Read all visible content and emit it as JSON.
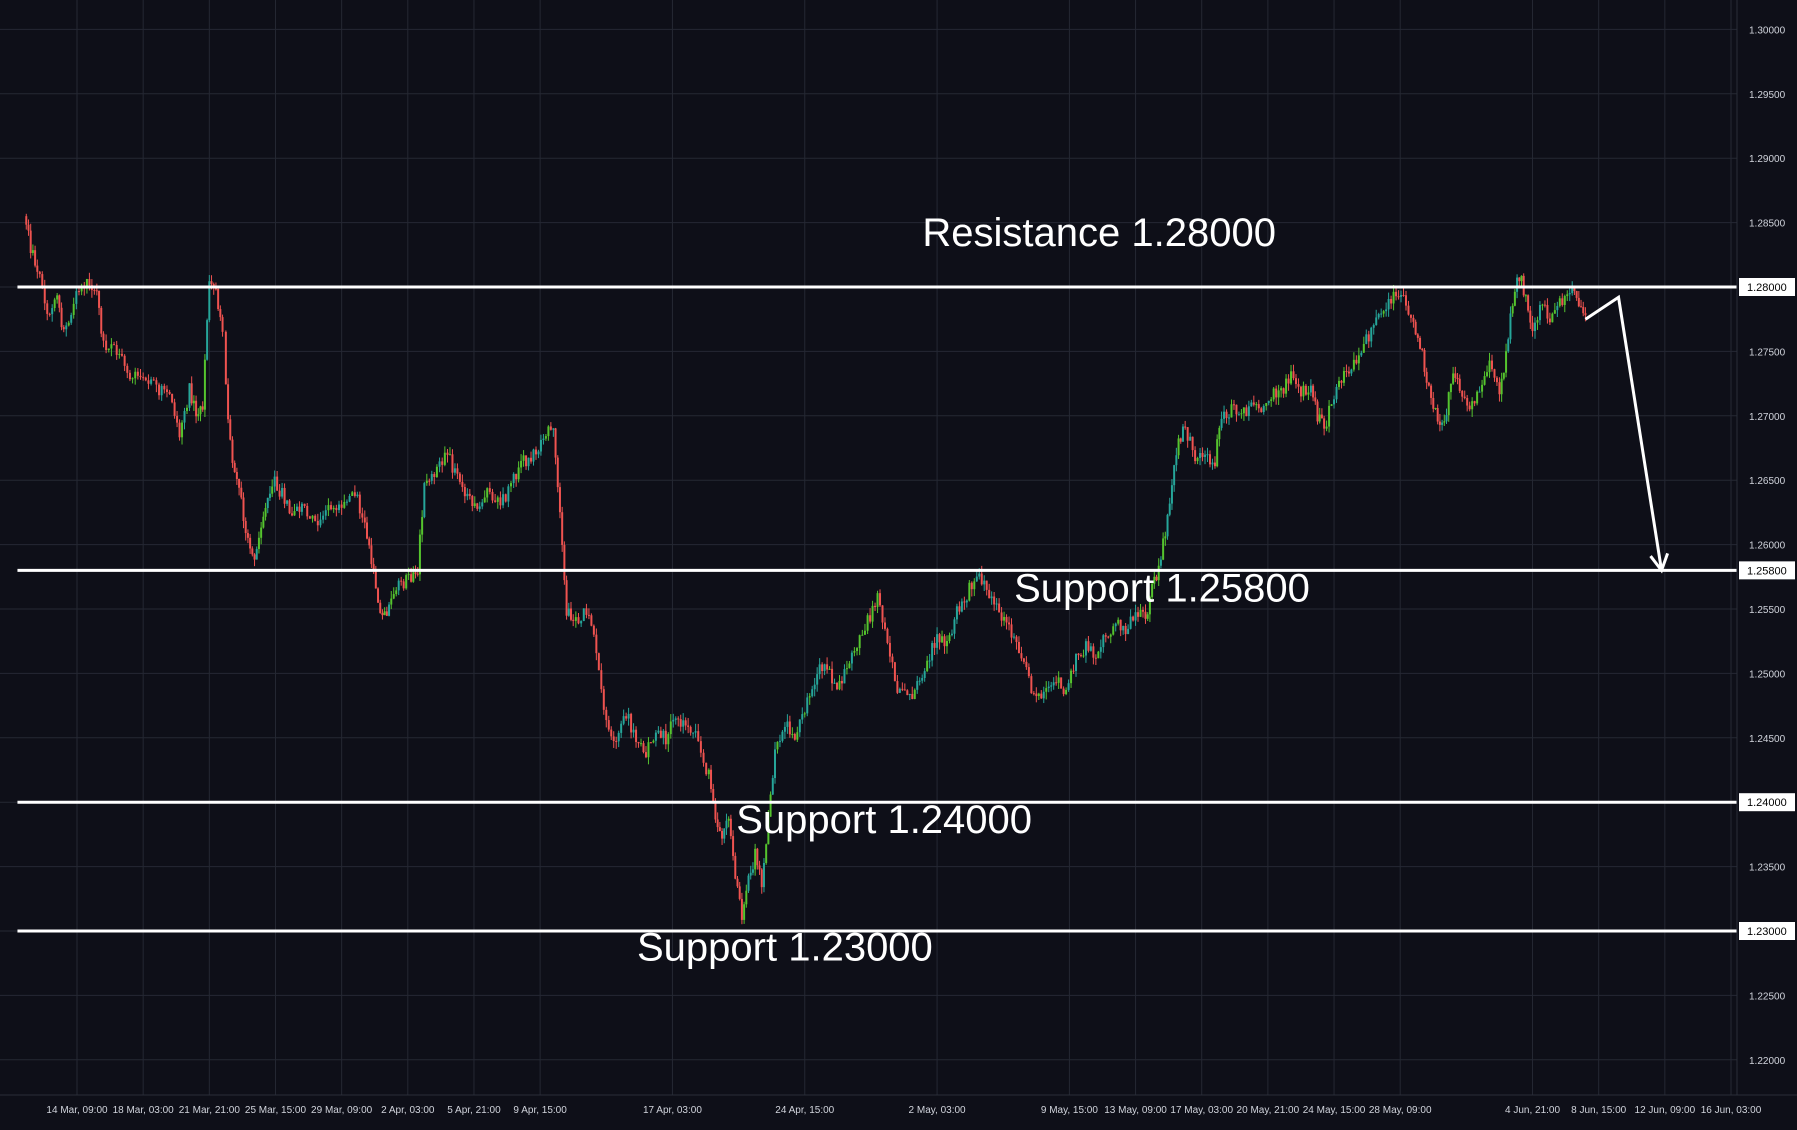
{
  "chart_data": {
    "type": "candlestick",
    "colors": {
      "background": "#0e0f18",
      "grid": "#252833",
      "up": "#26a69a",
      "up_alt": "#55c42e",
      "down": "#ef5350",
      "annotation": "#ffffff",
      "axis_text": "#d1d4dc"
    },
    "y_axis": {
      "ylim": [
        1.2155,
        1.3035
      ],
      "ticks": [
        "1.30000",
        "1.29500",
        "1.29000",
        "1.28500",
        "1.28000",
        "1.27500",
        "1.27000",
        "1.26500",
        "1.26000",
        "1.25500",
        "1.25000",
        "1.24500",
        "1.24000",
        "1.23500",
        "1.23000",
        "1.22500",
        "1.22000"
      ],
      "tick_values": [
        1.3,
        1.295,
        1.29,
        1.285,
        1.28,
        1.275,
        1.27,
        1.265,
        1.26,
        1.255,
        1.25,
        1.245,
        1.24,
        1.235,
        1.23,
        1.225,
        1.22
      ],
      "highlighted": [
        {
          "label": "1.28000",
          "value": 1.28
        },
        {
          "label": "1.25800",
          "value": 1.258
        },
        {
          "label": "1.24000",
          "value": 1.24
        },
        {
          "label": "1.23000",
          "value": 1.23
        }
      ]
    },
    "x_axis": {
      "labels": [
        {
          "text": "14 Mar, 09:00",
          "x": 0.8
        },
        {
          "text": "18 Mar, 03:00",
          "x": 1.8
        },
        {
          "text": "21 Mar, 21:00",
          "x": 2.8
        },
        {
          "text": "25 Mar, 15:00",
          "x": 3.8
        },
        {
          "text": "29 Mar, 09:00",
          "x": 4.8
        },
        {
          "text": "2 Apr, 03:00",
          "x": 5.8
        },
        {
          "text": "5 Apr, 21:00",
          "x": 6.8
        },
        {
          "text": "9 Apr, 15:00",
          "x": 7.8
        },
        {
          "text": "17 Apr, 03:00",
          "x": 9.8
        },
        {
          "text": "24 Apr, 15:00",
          "x": 11.8
        },
        {
          "text": "2 May, 03:00",
          "x": 13.8
        },
        {
          "text": "9 May, 15:00",
          "x": 15.8
        },
        {
          "text": "13 May, 09:00",
          "x": 16.8
        },
        {
          "text": "17 May, 03:00",
          "x": 17.8
        },
        {
          "text": "20 May, 21:00",
          "x": 18.8
        },
        {
          "text": "24 May, 15:00",
          "x": 19.8
        },
        {
          "text": "28 May, 09:00",
          "x": 20.8
        },
        {
          "text": "4 Jun, 21:00",
          "x": 22.8
        },
        {
          "text": "8 Jun, 15:00",
          "x": 23.8
        },
        {
          "text": "12 Jun, 09:00",
          "x": 24.8
        },
        {
          "text": "16 Jun, 03:00",
          "x": 25.8
        }
      ],
      "xlim": [
        -0.1,
        26.3
      ]
    },
    "grid": true,
    "price_path": [
      [
        0,
        1.2855
      ],
      [
        0.1,
        1.283
      ],
      [
        0.2,
        1.2815
      ],
      [
        0.35,
        1.278
      ],
      [
        0.5,
        1.279
      ],
      [
        0.6,
        1.2765
      ],
      [
        0.75,
        1.279
      ],
      [
        0.95,
        1.2805
      ],
      [
        1.1,
        1.2795
      ],
      [
        1.2,
        1.2755
      ],
      [
        1.4,
        1.275
      ],
      [
        1.6,
        1.273
      ],
      [
        1.8,
        1.2735
      ],
      [
        2.0,
        1.272
      ],
      [
        2.2,
        1.2715
      ],
      [
        2.35,
        1.2685
      ],
      [
        2.5,
        1.272
      ],
      [
        2.6,
        1.27
      ],
      [
        2.7,
        1.271
      ],
      [
        2.8,
        1.28
      ],
      [
        2.9,
        1.2795
      ],
      [
        3.0,
        1.277
      ],
      [
        3.05,
        1.272
      ],
      [
        3.15,
        1.266
      ],
      [
        3.25,
        1.2645
      ],
      [
        3.35,
        1.261
      ],
      [
        3.45,
        1.259
      ],
      [
        3.55,
        1.26
      ],
      [
        3.65,
        1.263
      ],
      [
        3.75,
        1.265
      ],
      [
        3.9,
        1.264
      ],
      [
        4.05,
        1.2625
      ],
      [
        4.2,
        1.263
      ],
      [
        4.4,
        1.2615
      ],
      [
        4.6,
        1.263
      ],
      [
        4.8,
        1.2625
      ],
      [
        5.0,
        1.264
      ],
      [
        5.15,
        1.2615
      ],
      [
        5.25,
        1.259
      ],
      [
        5.35,
        1.255
      ],
      [
        5.45,
        1.2545
      ],
      [
        5.55,
        1.256
      ],
      [
        5.7,
        1.257
      ],
      [
        5.85,
        1.2575
      ],
      [
        5.95,
        1.258
      ],
      [
        6.05,
        1.265
      ],
      [
        6.2,
        1.2655
      ],
      [
        6.4,
        1.267
      ],
      [
        6.55,
        1.265
      ],
      [
        6.7,
        1.2635
      ],
      [
        6.85,
        1.2625
      ],
      [
        7.0,
        1.264
      ],
      [
        7.2,
        1.263
      ],
      [
        7.4,
        1.265
      ],
      [
        7.55,
        1.2665
      ],
      [
        7.7,
        1.267
      ],
      [
        7.85,
        1.2685
      ],
      [
        8.0,
        1.269
      ],
      [
        8.1,
        1.263
      ],
      [
        8.2,
        1.255
      ],
      [
        8.3,
        1.254
      ],
      [
        8.5,
        1.255
      ],
      [
        8.65,
        1.252
      ],
      [
        8.8,
        1.246
      ],
      [
        8.95,
        1.245
      ],
      [
        9.1,
        1.247
      ],
      [
        9.25,
        1.2445
      ],
      [
        9.4,
        1.244
      ],
      [
        9.55,
        1.2455
      ],
      [
        9.7,
        1.245
      ],
      [
        9.85,
        1.2465
      ],
      [
        10.0,
        1.246
      ],
      [
        10.15,
        1.245
      ],
      [
        10.35,
        1.242
      ],
      [
        10.45,
        1.2385
      ],
      [
        10.55,
        1.2375
      ],
      [
        10.65,
        1.239
      ],
      [
        10.75,
        1.234
      ],
      [
        10.85,
        1.231
      ],
      [
        10.95,
        1.234
      ],
      [
        11.05,
        1.236
      ],
      [
        11.15,
        1.2335
      ],
      [
        11.25,
        1.239
      ],
      [
        11.35,
        1.244
      ],
      [
        11.5,
        1.246
      ],
      [
        11.65,
        1.245
      ],
      [
        11.8,
        1.247
      ],
      [
        11.95,
        1.2495
      ],
      [
        12.1,
        1.251
      ],
      [
        12.25,
        1.249
      ],
      [
        12.4,
        1.25
      ],
      [
        12.55,
        1.252
      ],
      [
        12.75,
        1.254
      ],
      [
        12.9,
        1.256
      ],
      [
        13.05,
        1.252
      ],
      [
        13.2,
        1.249
      ],
      [
        13.35,
        1.248
      ],
      [
        13.5,
        1.249
      ],
      [
        13.65,
        1.251
      ],
      [
        13.8,
        1.253
      ],
      [
        13.95,
        1.252
      ],
      [
        14.1,
        1.255
      ],
      [
        14.25,
        1.256
      ],
      [
        14.4,
        1.258
      ],
      [
        14.55,
        1.2565
      ],
      [
        14.7,
        1.255
      ],
      [
        14.85,
        1.254
      ],
      [
        15.0,
        1.252
      ],
      [
        15.15,
        1.25
      ],
      [
        15.3,
        1.248
      ],
      [
        15.45,
        1.2485
      ],
      [
        15.6,
        1.2495
      ],
      [
        15.75,
        1.2485
      ],
      [
        15.9,
        1.251
      ],
      [
        16.05,
        1.252
      ],
      [
        16.2,
        1.2515
      ],
      [
        16.35,
        1.253
      ],
      [
        16.5,
        1.254
      ],
      [
        16.65,
        1.253
      ],
      [
        16.8,
        1.255
      ],
      [
        16.95,
        1.254
      ],
      [
        17.05,
        1.257
      ],
      [
        17.15,
        1.258
      ],
      [
        17.25,
        1.261
      ],
      [
        17.35,
        1.265
      ],
      [
        17.45,
        1.268
      ],
      [
        17.55,
        1.269
      ],
      [
        17.7,
        1.267
      ],
      [
        17.85,
        1.2665
      ],
      [
        18.0,
        1.2665
      ],
      [
        18.1,
        1.27
      ],
      [
        18.25,
        1.2705
      ],
      [
        18.4,
        1.27
      ],
      [
        18.55,
        1.271
      ],
      [
        18.7,
        1.2705
      ],
      [
        18.85,
        1.2715
      ],
      [
        19.0,
        1.272
      ],
      [
        19.15,
        1.273
      ],
      [
        19.3,
        1.272
      ],
      [
        19.45,
        1.272
      ],
      [
        19.55,
        1.27
      ],
      [
        19.65,
        1.269
      ],
      [
        19.8,
        1.2715
      ],
      [
        19.95,
        1.2735
      ],
      [
        20.1,
        1.274
      ],
      [
        20.25,
        1.2755
      ],
      [
        20.4,
        1.277
      ],
      [
        20.55,
        1.278
      ],
      [
        20.7,
        1.2795
      ],
      [
        20.85,
        1.279
      ],
      [
        21.0,
        1.277
      ],
      [
        21.1,
        1.2755
      ],
      [
        21.2,
        1.273
      ],
      [
        21.3,
        1.271
      ],
      [
        21.4,
        1.269
      ],
      [
        21.5,
        1.2705
      ],
      [
        21.6,
        1.273
      ],
      [
        21.7,
        1.272
      ],
      [
        21.85,
        1.271
      ],
      [
        22.0,
        1.272
      ],
      [
        22.15,
        1.274
      ],
      [
        22.3,
        1.2715
      ],
      [
        22.4,
        1.275
      ],
      [
        22.5,
        1.279
      ],
      [
        22.6,
        1.281
      ],
      [
        22.7,
        1.279
      ],
      [
        22.8,
        1.277
      ],
      [
        22.95,
        1.2785
      ],
      [
        23.1,
        1.2775
      ],
      [
        23.25,
        1.279
      ],
      [
        23.4,
        1.28
      ],
      [
        23.5,
        1.279
      ],
      [
        23.6,
        1.2775
      ]
    ],
    "annotations": [
      {
        "text": "Resistance 1.28000",
        "value": 1.28,
        "x_start": -0.1,
        "x_end": 26.3,
        "label_x": 16.25,
        "label_value": 1.2832
      },
      {
        "text": "Support 1.25800",
        "value": 1.258,
        "x_start": -0.1,
        "x_end": 26.3,
        "label_x": 17.2,
        "label_value": 1.2556
      },
      {
        "text": "Support 1.24000",
        "value": 1.24,
        "x_start": -0.1,
        "x_end": 26.3,
        "label_x": 13.0,
        "label_value": 1.2376
      },
      {
        "text": "Support 1.23000",
        "value": 1.23,
        "x_start": -0.1,
        "x_end": 26.3,
        "label_x": 11.5,
        "label_value": 1.2277
      }
    ],
    "projection": [
      [
        23.6,
        1.2775
      ],
      [
        24.1,
        1.2792
      ],
      [
        24.75,
        1.258
      ]
    ]
  }
}
